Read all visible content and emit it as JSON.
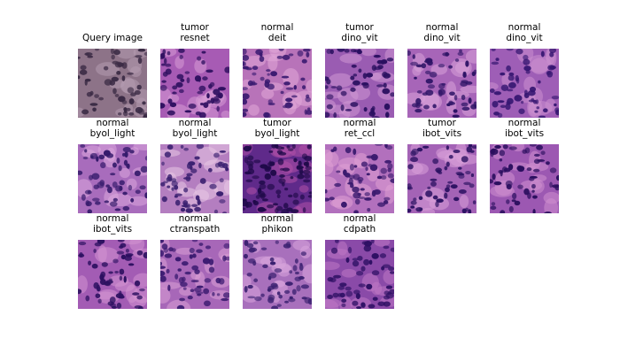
{
  "query": {
    "title": "Query image"
  },
  "results": [
    {
      "label": "tumor",
      "model": "resnet"
    },
    {
      "label": "normal",
      "model": "deit"
    },
    {
      "label": "tumor",
      "model": "dino_vit"
    },
    {
      "label": "normal",
      "model": "dino_vit"
    },
    {
      "label": "normal",
      "model": "dino_vit"
    },
    {
      "label": "normal",
      "model": "byol_light"
    },
    {
      "label": "normal",
      "model": "byol_light"
    },
    {
      "label": "tumor",
      "model": "byol_light"
    },
    {
      "label": "normal",
      "model": "ret_ccl"
    },
    {
      "label": "tumor",
      "model": "ibot_vits"
    },
    {
      "label": "normal",
      "model": "ibot_vits"
    },
    {
      "label": "normal",
      "model": "ibot_vits"
    },
    {
      "label": "normal",
      "model": "ctranspath"
    },
    {
      "label": "normal",
      "model": "phikon"
    },
    {
      "label": "normal",
      "model": "cdpath"
    }
  ]
}
